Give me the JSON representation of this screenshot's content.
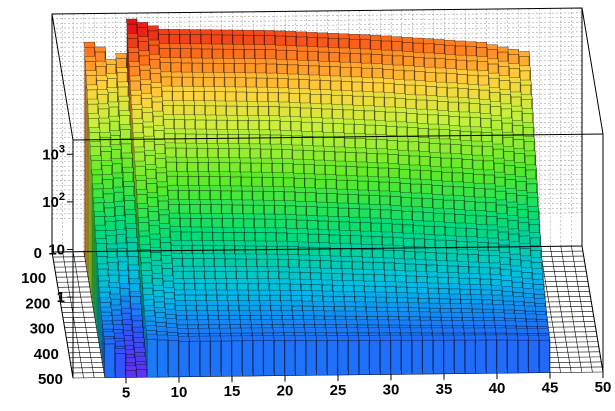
{
  "chart_data": {
    "type": "lego3d",
    "title": "",
    "xlabel": "",
    "ylabel": "",
    "zlabel": "",
    "x": {
      "range": [
        0,
        50
      ],
      "ticks": [
        5,
        10,
        15,
        20,
        25,
        30,
        35,
        40,
        45,
        50
      ]
    },
    "y": {
      "range": [
        0,
        500
      ],
      "ticks": [
        0,
        100,
        200,
        300,
        400,
        500
      ]
    },
    "z": {
      "scale": "log",
      "ticks": [
        {
          "value": 1,
          "base": "1",
          "exp": ""
        },
        {
          "value": 10,
          "base": "10",
          "exp": ""
        },
        {
          "value": 100,
          "base": "10",
          "exp": "2"
        },
        {
          "value": 1000,
          "base": "10",
          "exp": "3"
        }
      ]
    },
    "grid": true,
    "palette": "rainbow",
    "surface": {
      "x_start": 3,
      "x_end": 45,
      "x_step": 1,
      "y_start": 0,
      "y_end": 500,
      "y_step": 20,
      "z_min": 0.02,
      "peak_columns": [
        {
          "x": 3,
          "z": 500
        },
        {
          "x": 7,
          "z": 1500
        },
        {
          "x": 10,
          "z": 900
        },
        {
          "x": 20,
          "z": 800
        },
        {
          "x": 30,
          "z": 600
        },
        {
          "x": 40,
          "z": 400
        },
        {
          "x": 44,
          "z": 250
        }
      ]
    }
  }
}
